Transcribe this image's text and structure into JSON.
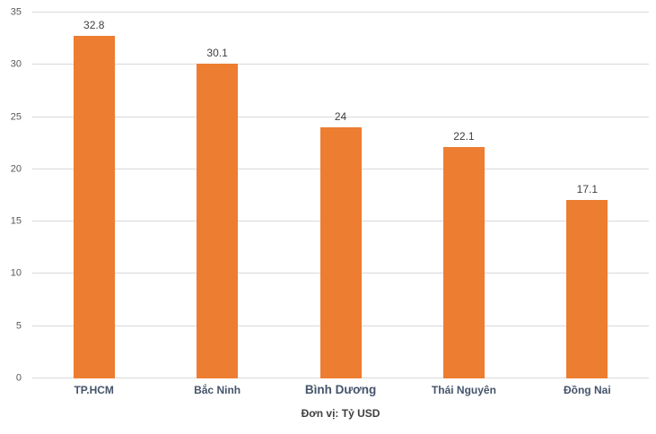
{
  "chart_data": {
    "type": "bar",
    "title": "",
    "caption": "Đơn vị: Tỷ USD",
    "categories": [
      "TP.HCM",
      "Bắc Ninh",
      "Bình Dương",
      "Thái Nguyên",
      "Đồng Nai"
    ],
    "values": [
      32.8,
      30.1,
      24,
      22.1,
      17.1
    ],
    "value_labels": [
      "32.8",
      "30.1",
      "24",
      "22.1",
      "17.1"
    ],
    "emphasized_category": "Bình Dương",
    "ylim": [
      0,
      35
    ],
    "yticks": [
      0,
      5,
      10,
      15,
      20,
      25,
      30,
      35
    ],
    "grid": true,
    "legend": "none",
    "colors": {
      "bar": "#ED7D31",
      "gridline": "#D9D9D9",
      "tick_label": "#595959",
      "value_label": "#404040",
      "category_label": "#44546A"
    }
  }
}
